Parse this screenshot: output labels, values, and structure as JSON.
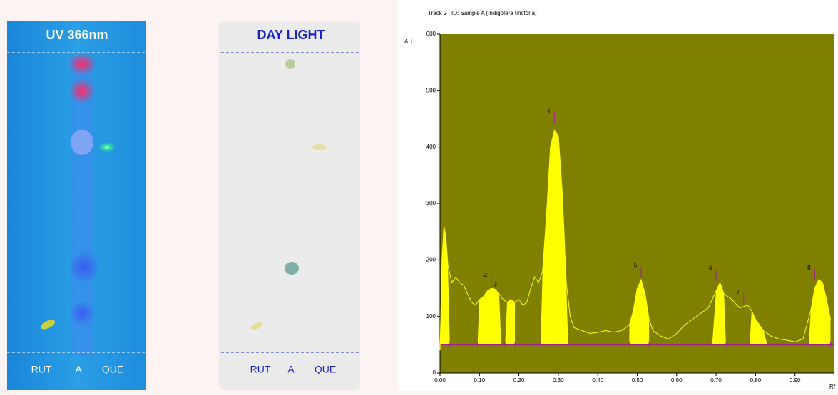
{
  "plates": [
    {
      "title": "UV 366nm",
      "lanes": [
        "RUT",
        "A",
        "QUE"
      ]
    },
    {
      "title": "DAY LIGHT",
      "lanes": [
        "RUT",
        "A",
        "QUE"
      ]
    }
  ],
  "chart_data": {
    "type": "line",
    "title": "Track  2 , ID: Sample A (Indigofera tinctoria)",
    "y_label": "AU",
    "x_label": "Rf",
    "xlim": [
      0,
      1.0
    ],
    "ylim": [
      0,
      600
    ],
    "xticks": [
      {
        "value": 0,
        "label": "0.00"
      },
      {
        "value": 0.1,
        "label": "0.10"
      },
      {
        "value": 0.2,
        "label": "0.20"
      },
      {
        "value": 0.3,
        "label": "0.30"
      },
      {
        "value": 0.4,
        "label": "0.40"
      },
      {
        "value": 0.5,
        "label": "0.50"
      },
      {
        "value": 0.6,
        "label": "0.60"
      },
      {
        "value": 0.7,
        "label": "0.70"
      },
      {
        "value": 0.8,
        "label": "0.80"
      },
      {
        "value": 0.9,
        "label": "0.90"
      }
    ],
    "yticks": [
      0,
      100,
      200,
      300,
      400,
      500,
      600
    ],
    "background": "#808000",
    "fill_color": "#ffff00",
    "baseline_color": "#a0208f",
    "baseline": 50,
    "x": [
      0,
      0.005,
      0.01,
      0.015,
      0.02,
      0.03,
      0.04,
      0.05,
      0.06,
      0.07,
      0.08,
      0.09,
      0.1,
      0.11,
      0.12,
      0.13,
      0.14,
      0.15,
      0.16,
      0.17,
      0.18,
      0.19,
      0.2,
      0.21,
      0.22,
      0.23,
      0.24,
      0.25,
      0.26,
      0.27,
      0.28,
      0.29,
      0.3,
      0.31,
      0.32,
      0.33,
      0.34,
      0.36,
      0.38,
      0.4,
      0.42,
      0.44,
      0.46,
      0.48,
      0.49,
      0.5,
      0.51,
      0.52,
      0.53,
      0.54,
      0.56,
      0.58,
      0.6,
      0.62,
      0.64,
      0.66,
      0.68,
      0.7,
      0.71,
      0.72,
      0.74,
      0.76,
      0.78,
      0.79,
      0.8,
      0.82,
      0.84,
      0.86,
      0.88,
      0.9,
      0.92,
      0.94,
      0.95,
      0.96,
      0.97,
      0.98,
      0.99
    ],
    "series": [
      {
        "color": "#ffff00",
        "values": [
          40,
          200,
          260,
          240,
          190,
          160,
          170,
          160,
          155,
          140,
          125,
          120,
          130,
          135,
          145,
          150,
          148,
          140,
          130,
          125,
          130,
          125,
          130,
          120,
          125,
          150,
          170,
          160,
          180,
          280,
          400,
          430,
          420,
          320,
          160,
          100,
          80,
          75,
          70,
          72,
          75,
          72,
          75,
          85,
          110,
          150,
          165,
          140,
          95,
          75,
          65,
          60,
          70,
          85,
          95,
          105,
          115,
          145,
          160,
          140,
          130,
          115,
          120,
          110,
          95,
          75,
          65,
          60,
          58,
          55,
          60,
          110,
          150,
          165,
          160,
          130,
          95
        ]
      }
    ],
    "integration_ranges": [
      [
        0,
        0.025
      ],
      [
        0.095,
        0.155
      ],
      [
        0.165,
        0.19
      ],
      [
        0.255,
        0.325
      ],
      [
        0.48,
        0.53
      ],
      [
        0.69,
        0.725
      ],
      [
        0.785,
        0.83
      ],
      [
        0.935,
        0.99
      ]
    ],
    "peaks": [
      {
        "label": "2",
        "x": 0.13,
        "y": 165
      },
      {
        "label": "3",
        "x": 0.155,
        "y": 148
      },
      {
        "label": "4",
        "x": 0.29,
        "y": 455
      },
      {
        "label": "5",
        "x": 0.51,
        "y": 182
      },
      {
        "label": "6",
        "x": 0.7,
        "y": 177
      },
      {
        "label": "7",
        "x": 0.77,
        "y": 135
      },
      {
        "label": "8",
        "x": 0.95,
        "y": 178
      }
    ]
  }
}
